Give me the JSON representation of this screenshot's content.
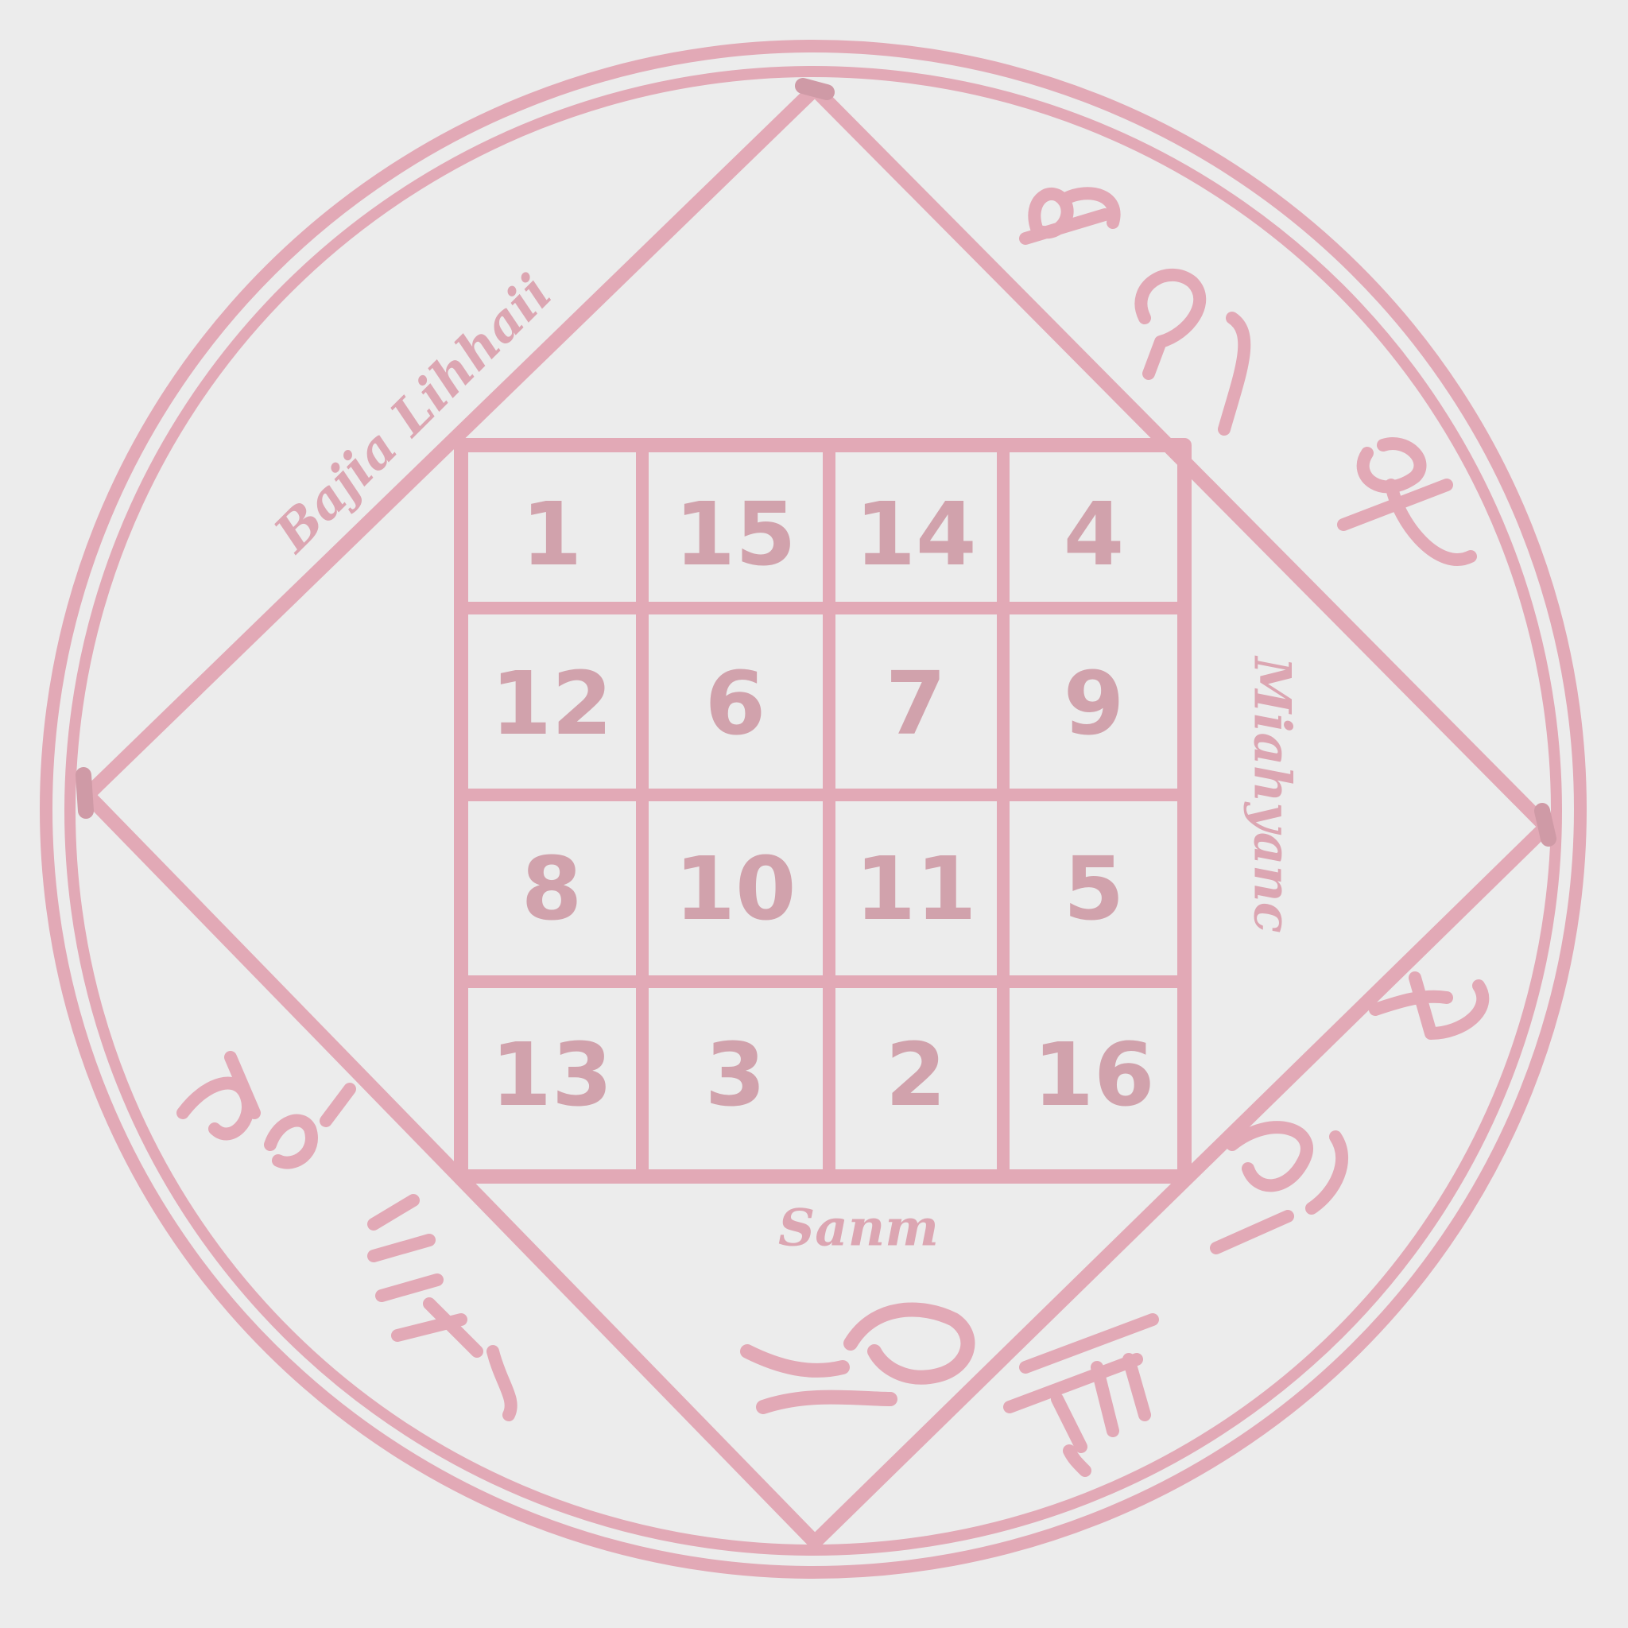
{
  "colors": {
    "background": "#ececec",
    "ink": "#e2a9b6",
    "ink_dark": "#cf9aa6",
    "numbers": "#d1a2ac"
  },
  "magic_square": {
    "rows": [
      [
        "1",
        "15",
        "14",
        "4"
      ],
      [
        "12",
        "6",
        "7",
        "9"
      ],
      [
        "8",
        "10",
        "11",
        "5"
      ],
      [
        "13",
        "3",
        "2",
        "16"
      ]
    ]
  },
  "names": {
    "top_left": "Bajia Lihhaii",
    "right": "Miahyanc",
    "bottom": "Sanm"
  },
  "symbols": {
    "top_right": [
      "sigil-1",
      "sigil-2",
      "sigil-3"
    ],
    "bottom_right": [
      "sigil-4",
      "sigil-5",
      "sigil-6"
    ],
    "bottom_center": "sigil-7",
    "bottom_left": [
      "sigil-8",
      "sigil-9"
    ]
  }
}
